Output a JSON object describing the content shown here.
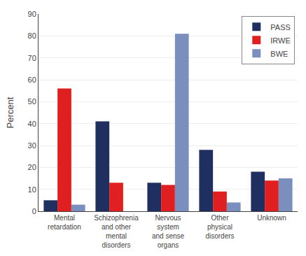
{
  "chart_data": {
    "type": "bar",
    "ylabel": "Percent",
    "categories": [
      "Mental\nretardation",
      "Schizophrenia\nand other\nmental\ndisorders",
      "Nervous\nsystem\nand sense\norgans",
      "Other\nphysical\ndisorders",
      "Unknown"
    ],
    "series": [
      {
        "name": "PASS",
        "color": "#1f3060",
        "values": [
          5,
          41,
          13,
          28,
          18
        ]
      },
      {
        "name": "IRWE",
        "color": "#e02020",
        "values": [
          56,
          13,
          12,
          9,
          14
        ]
      },
      {
        "name": "BWE",
        "color": "#7b8fbe",
        "values": [
          3,
          0,
          81,
          4,
          15
        ]
      }
    ],
    "ylim": [
      0,
      90
    ],
    "yticks": [
      0,
      10,
      20,
      30,
      40,
      50,
      60,
      70,
      80,
      90
    ],
    "grid": true,
    "legend": "upper right"
  }
}
